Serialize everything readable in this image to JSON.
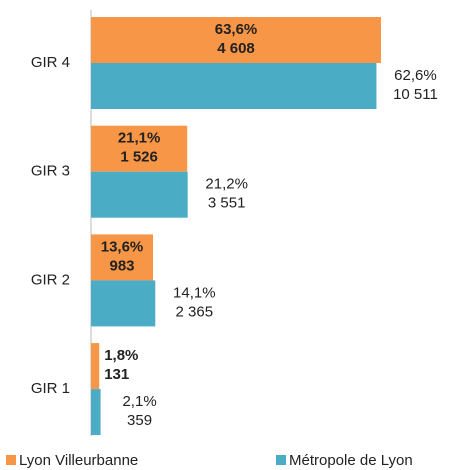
{
  "chart_data": {
    "type": "hbar",
    "categories": [
      "GIR 4",
      "GIR 3",
      "GIR 2",
      "GIR 1"
    ],
    "series": [
      {
        "name": "Lyon Villeurbanne",
        "color": "#f79646",
        "values": [
          63.6,
          21.1,
          13.6,
          1.8
        ],
        "value_labels": [
          "63,6%",
          "21,1%",
          "13,6%",
          "1,8%"
        ],
        "counts": [
          4608,
          1526,
          983,
          131
        ],
        "count_labels": [
          "4 608",
          "1 526",
          "983",
          "131"
        ]
      },
      {
        "name": "Métropole de Lyon",
        "color": "#4bacc6",
        "values": [
          62.6,
          21.2,
          14.1,
          2.1
        ],
        "value_labels": [
          "62,6%",
          "21,2%",
          "14,1%",
          "2,1%"
        ],
        "counts": [
          10511,
          3551,
          2365,
          359
        ],
        "count_labels": [
          "10 511",
          "3 551",
          "2 365",
          "359"
        ]
      }
    ]
  }
}
